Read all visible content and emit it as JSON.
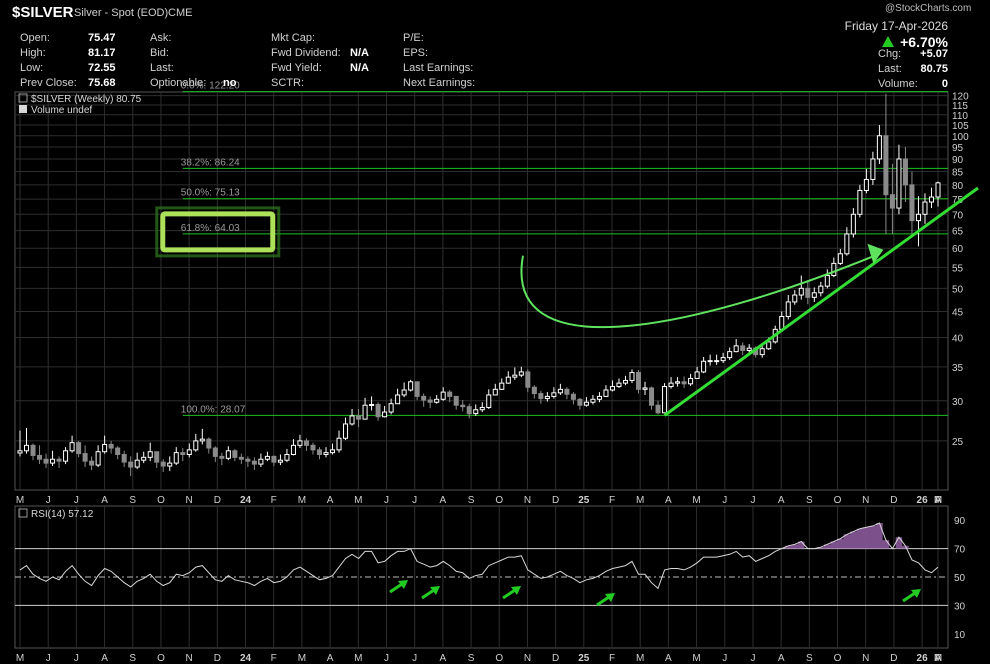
{
  "header": {
    "symbol": "$SILVER",
    "description": "Silver - Spot (EOD)",
    "exchange": "CME",
    "watermark": "@StockCharts.com",
    "date": "Friday 17-Apr-2026",
    "pct_change": "+6.70%",
    "stats_left": [
      {
        "label": "Open:",
        "value": "75.47"
      },
      {
        "label": "High:",
        "value": "81.17"
      },
      {
        "label": "Low:",
        "value": "72.55"
      },
      {
        "label": "Prev Close:",
        "value": "75.68"
      }
    ],
    "stats_mid": [
      {
        "label": "Ask:",
        "value": ""
      },
      {
        "label": "Bid:",
        "value": ""
      },
      {
        "label": "Last:",
        "value": ""
      },
      {
        "label": "Optionable:",
        "value": "no"
      }
    ],
    "stats_mid2": [
      {
        "label": "Mkt Cap:",
        "value": ""
      },
      {
        "label": "Fwd Dividend:",
        "value": "N/A"
      },
      {
        "label": "Fwd Yield:",
        "value": "N/A"
      },
      {
        "label": "SCTR:",
        "value": ""
      }
    ],
    "stats_mid3": [
      {
        "label": "P/E:",
        "value": ""
      },
      {
        "label": "EPS:",
        "value": ""
      },
      {
        "label": "Last Earnings:",
        "value": ""
      },
      {
        "label": "Next Earnings:",
        "value": ""
      }
    ],
    "stats_right": [
      {
        "label": "Chg:",
        "value": "+5.07"
      },
      {
        "label": "Last:",
        "value": "80.75"
      },
      {
        "label": "Volume:",
        "value": "0"
      }
    ]
  },
  "legend": {
    "price": "$SILVER (Weekly) 80.75",
    "volume": "Volume undef",
    "rsi": "RSI(14) 57.12"
  },
  "colors": {
    "up": "#ffffff",
    "down": "#8a8a8a",
    "fib": "#1fbf1f",
    "trend": "#33dd33",
    "rsi": "#d8d8d8",
    "rsi_fill": "#8a5a9a",
    "grid": "#2e2e2e",
    "highlight": "#aee15a"
  },
  "chart_data": [
    {
      "type": "candlestick",
      "title": "$SILVER (Weekly) 80.75",
      "scale": "log",
      "ylim": [
        20,
        122
      ],
      "y_ticks": [
        25,
        30,
        35,
        40,
        45,
        50,
        55,
        60,
        65,
        70,
        75,
        80,
        85,
        90,
        95,
        100,
        105,
        110,
        115,
        120
      ],
      "x_ticks": [
        "M",
        "J",
        "J",
        "A",
        "S",
        "O",
        "N",
        "D",
        "24",
        "F",
        "M",
        "A",
        "M",
        "J",
        "J",
        "A",
        "S",
        "O",
        "N",
        "D",
        "25",
        "F",
        "M",
        "A",
        "M",
        "J",
        "J",
        "A",
        "S",
        "O",
        "N",
        "D",
        "26",
        "F",
        "M",
        "A"
      ],
      "grid": true,
      "series": [
        {
          "name": "$SILVER",
          "x_start": "2023-05-01",
          "interval": "weekly",
          "close": [
            23.9,
            24.5,
            23.4,
            23.0,
            22.6,
            23.0,
            22.8,
            23.9,
            24.8,
            23.6,
            22.8,
            22.4,
            23.8,
            24.6,
            24.2,
            23.5,
            22.7,
            22.2,
            22.9,
            23.2,
            23.8,
            22.7,
            22.3,
            22.6,
            23.7,
            23.5,
            24.0,
            25.0,
            25.2,
            24.2,
            23.3,
            23.1,
            23.9,
            23.2,
            23.0,
            22.8,
            22.5,
            23.0,
            23.3,
            22.7,
            22.9,
            23.5,
            24.5,
            25.0,
            24.5,
            24.0,
            23.5,
            23.7,
            24.0,
            25.3,
            27.0,
            28.0,
            27.6,
            29.4,
            29.5,
            27.9,
            28.5,
            29.6,
            30.8,
            31.5,
            32.7,
            30.6,
            30.1,
            29.8,
            30.2,
            31.2,
            30.6,
            29.4,
            29.2,
            28.3,
            28.8,
            29.1,
            30.8,
            31.6,
            32.5,
            33.4,
            33.7,
            34.2,
            31.9,
            31.0,
            30.3,
            30.6,
            31.1,
            31.6,
            30.9,
            30.2,
            29.4,
            29.8,
            30.2,
            30.6,
            31.5,
            32.0,
            32.5,
            32.9,
            34.1,
            31.6,
            31.8,
            29.4,
            28.4,
            32.0,
            32.5,
            32.7,
            32.4,
            33.2,
            34.2,
            35.9,
            36.0,
            36.0,
            36.5,
            37.5,
            38.5,
            37.7,
            38.1,
            37.0,
            38.0,
            39.2,
            41.5,
            44.0,
            47.0,
            48.5,
            50.0,
            48.0,
            49.0,
            50.5,
            53.0,
            56.0,
            58.5,
            64.0,
            70.0,
            78.0,
            82.0,
            90.0,
            100.0,
            76.5,
            72.0,
            90.0,
            80.0,
            68.0,
            70.0,
            74.0,
            75.7,
            80.75
          ],
          "high": [
            26.2,
            26.5,
            24.7,
            24.5,
            23.6,
            23.9,
            23.3,
            24.3,
            25.6,
            25.0,
            24.5,
            23.3,
            24.5,
            25.6,
            25.0,
            24.4,
            23.9,
            23.3,
            23.7,
            23.8,
            24.8,
            23.7,
            23.0,
            23.3,
            24.3,
            24.2,
            24.7,
            25.8,
            26.4,
            25.4,
            24.4,
            23.7,
            24.4,
            24.1,
            23.6,
            23.3,
            23.2,
            23.6,
            23.8,
            23.4,
            23.5,
            24.1,
            25.2,
            25.7,
            25.3,
            24.8,
            24.3,
            24.3,
            24.7,
            26.2,
            27.8,
            28.9,
            28.9,
            30.4,
            30.6,
            29.8,
            29.3,
            30.3,
            31.7,
            32.6,
            33.0,
            32.5,
            31.0,
            30.6,
            30.8,
            31.9,
            31.5,
            30.5,
            30.1,
            29.6,
            29.5,
            29.8,
            31.6,
            32.4,
            33.2,
            34.3,
            34.9,
            35.0,
            34.6,
            32.2,
            31.4,
            31.2,
            31.9,
            32.4,
            31.9,
            31.2,
            30.4,
            30.5,
            30.8,
            31.2,
            32.2,
            32.9,
            33.2,
            33.6,
            34.6,
            34.5,
            32.7,
            32.0,
            30.0,
            32.5,
            33.4,
            33.4,
            33.5,
            33.9,
            35.0,
            36.6,
            37.0,
            37.0,
            37.3,
            38.2,
            39.7,
            39.1,
            38.8,
            38.4,
            38.8,
            40.0,
            42.2,
            45.0,
            48.5,
            49.6,
            53.0,
            51.5,
            50.2,
            51.5,
            54.5,
            57.5,
            59.8,
            66.0,
            72.0,
            80.0,
            86.0,
            93.0,
            105.0,
            121.0,
            88.0,
            96.0,
            95.0,
            85.0,
            76.0,
            77.0,
            79.0,
            81.2
          ],
          "low": [
            23.3,
            23.6,
            22.9,
            22.5,
            22.1,
            22.3,
            22.1,
            22.5,
            23.7,
            23.2,
            22.2,
            21.9,
            22.2,
            23.6,
            23.6,
            23.0,
            22.2,
            21.3,
            22.0,
            22.6,
            22.8,
            22.1,
            21.7,
            21.8,
            22.4,
            22.8,
            23.2,
            23.8,
            24.6,
            23.6,
            22.7,
            22.4,
            22.9,
            22.8,
            22.5,
            22.2,
            21.9,
            22.2,
            22.8,
            22.3,
            22.4,
            22.7,
            23.4,
            24.2,
            23.9,
            23.5,
            23.0,
            23.2,
            23.5,
            23.7,
            25.1,
            26.8,
            26.6,
            27.6,
            28.7,
            27.4,
            27.8,
            28.2,
            29.8,
            30.5,
            31.3,
            30.1,
            29.2,
            29.0,
            29.6,
            30.0,
            29.8,
            28.8,
            28.6,
            27.7,
            28.0,
            28.5,
            28.9,
            30.8,
            31.5,
            32.4,
            33.0,
            33.4,
            31.2,
            30.3,
            29.6,
            29.9,
            30.3,
            30.8,
            30.2,
            29.5,
            28.8,
            29.2,
            29.5,
            29.8,
            30.5,
            31.3,
            31.8,
            32.2,
            32.5,
            31.0,
            30.8,
            28.8,
            28.2,
            28.5,
            31.7,
            32.0,
            31.8,
            32.1,
            33.5,
            34.0,
            35.2,
            35.3,
            35.6,
            36.1,
            37.4,
            36.9,
            37.0,
            36.5,
            36.5,
            37.8,
            38.9,
            41.0,
            43.4,
            46.4,
            47.5,
            46.5,
            47.0,
            48.2,
            50.0,
            52.6,
            55.6,
            58.0,
            63.0,
            69.0,
            77.0,
            80.0,
            88.0,
            64.0,
            64.0,
            70.0,
            74.0,
            64.0,
            60.5,
            67.0,
            72.0,
            72.5
          ],
          "fib_levels": [
            {
              "label": "0.0%: 122.20",
              "value": 122.2
            },
            {
              "label": "38.2%: 86.24",
              "value": 86.24
            },
            {
              "label": "50.0%: 75.13",
              "value": 75.13
            },
            {
              "label": "61.8%: 64.03",
              "value": 64.03
            },
            {
              "label": "100.0%: 28.07",
              "value": 28.07
            }
          ]
        }
      ]
    },
    {
      "type": "line",
      "title": "RSI(14) 57.12",
      "ylim": [
        0,
        100
      ],
      "y_ticks": [
        10,
        30,
        50,
        70,
        90
      ],
      "overbought": 70,
      "oversold": 30,
      "centerline": 50,
      "x_ticks": [
        "M",
        "J",
        "J",
        "A",
        "S",
        "O",
        "N",
        "D",
        "24",
        "F",
        "M",
        "A",
        "M",
        "J",
        "J",
        "A",
        "S",
        "O",
        "N",
        "D",
        "25",
        "F",
        "M",
        "A",
        "M",
        "J",
        "J",
        "A",
        "S",
        "O",
        "N",
        "D",
        "26",
        "F",
        "M",
        "A"
      ],
      "series": [
        {
          "name": "RSI(14)",
          "values": [
            55,
            58,
            52,
            49,
            47,
            50,
            48,
            54,
            58,
            52,
            47,
            44,
            51,
            56,
            54,
            50,
            46,
            43,
            47,
            49,
            52,
            47,
            44,
            46,
            52,
            51,
            53,
            57,
            58,
            53,
            48,
            47,
            51,
            48,
            47,
            46,
            44,
            47,
            49,
            46,
            47,
            50,
            55,
            57,
            54,
            51,
            48,
            49,
            51,
            57,
            63,
            66,
            63,
            68,
            68,
            60,
            61,
            65,
            68,
            68,
            70,
            61,
            59,
            57,
            58,
            61,
            58,
            54,
            53,
            49,
            51,
            52,
            58,
            60,
            62,
            64,
            64,
            65,
            55,
            52,
            49,
            50,
            52,
            54,
            51,
            49,
            46,
            48,
            49,
            51,
            54,
            56,
            57,
            58,
            61,
            52,
            52,
            46,
            42,
            55,
            56,
            56,
            55,
            57,
            60,
            64,
            64,
            64,
            65,
            66,
            68,
            64,
            65,
            61,
            63,
            65,
            68,
            70,
            72,
            73,
            75,
            70,
            70,
            71,
            73,
            75,
            77,
            80,
            82,
            84,
            85,
            86,
            88,
            76,
            70,
            78,
            72,
            62,
            60,
            55,
            53,
            57
          ]
        }
      ]
    }
  ]
}
